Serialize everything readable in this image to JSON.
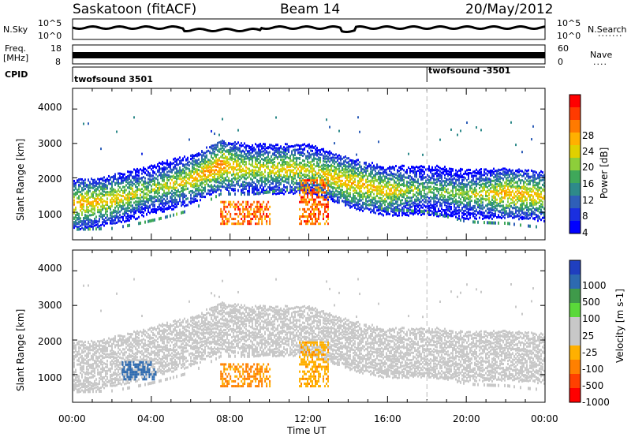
{
  "header": {
    "station": "Saskatoon (fitACF)",
    "beam": "Beam 14",
    "date": "20/May/2012"
  },
  "top_panels": {
    "nsky": {
      "label": "N.Sky",
      "ticks": [
        "10^5",
        "10^0"
      ]
    },
    "nsearch": {
      "label": "N.Search",
      "ticks": [
        "10^5",
        "10^0"
      ]
    },
    "freq": {
      "label_line1": "Freq.",
      "label_line2": "[MHz]",
      "ticks": [
        "18",
        "8"
      ]
    },
    "nave": {
      "label": "Nave",
      "ticks": [
        "60",
        "0"
      ]
    },
    "cpid": {
      "label": "CPID",
      "modes": [
        {
          "name": "twofsound 3501",
          "start_hour": 0
        },
        {
          "name": "twofsound -3501",
          "start_hour": 18
        }
      ]
    }
  },
  "panels": [
    {
      "name": "power",
      "ylabel": "Slant Range [km]",
      "yticks": [
        "4000",
        "3000",
        "2000",
        "1000"
      ],
      "cbar_label": "Power [dB]",
      "cbar_ticks": [
        "28",
        "24",
        "20",
        "16",
        "12",
        "8",
        "4"
      ],
      "cbar_colors": [
        "#ff0000",
        "#ff3a00",
        "#ff7a00",
        "#ffb000",
        "#e0d000",
        "#8dce3a",
        "#3fa85a",
        "#2e8a8a",
        "#2f5fb8",
        "#1a2fe0",
        "#0000ff"
      ]
    },
    {
      "name": "velocity",
      "ylabel": "Slant Range [km]",
      "yticks": [
        "4000",
        "3000",
        "2000",
        "1000"
      ],
      "cbar_label": "Velocity [m s-1]",
      "cbar_ticks": [
        "1000",
        "500",
        "100",
        "25",
        "-25",
        "-100",
        "-500",
        "-1000"
      ],
      "cbar_colors": [
        "#1f3fbf",
        "#2d6ab0",
        "#3f9a4a",
        "#5ad83a",
        "#c8c8c8",
        "#c8c8c8",
        "#ffb000",
        "#ff8000",
        "#ff4000",
        "#ff0000"
      ]
    }
  ],
  "xaxis": {
    "label": "Time UT",
    "ticks": [
      "00:00",
      "04:00",
      "08:00",
      "12:00",
      "16:00",
      "20:00",
      "00:00"
    ]
  },
  "chart_data": {
    "type": "heatmap",
    "title": "Saskatoon (fitACF)  Beam 14  20/May/2012",
    "xlabel": "Time UT",
    "ylabel": "Slant Range [km]",
    "xlim_hours": [
      0,
      24
    ],
    "ylim_km": [
      200,
      4600
    ],
    "power_colorbar_ticks_dB": [
      4,
      8,
      12,
      16,
      20,
      24,
      28
    ],
    "velocity_colorbar_ticks_ms": [
      -1000,
      -500,
      -100,
      -25,
      25,
      100,
      500,
      1000
    ],
    "cpid_change_hour": 18,
    "main_scatter_band": {
      "time_hours": [
        0,
        2,
        4,
        6,
        7.5,
        9,
        11,
        12,
        14,
        16,
        18,
        20,
        22,
        24
      ],
      "center_range_km": [
        1250,
        1400,
        1700,
        2000,
        2400,
        2300,
        2300,
        2300,
        1900,
        1650,
        1700,
        1550,
        1600,
        1500
      ],
      "power_dB": [
        22,
        20,
        16,
        20,
        24,
        18,
        20,
        18,
        22,
        20,
        14,
        16,
        22,
        20
      ]
    },
    "velocity_enhancements": [
      {
        "time_hours": [
          2.5,
          4.2
        ],
        "range_km": [
          900,
          1400
        ],
        "velocity_ms": 500
      },
      {
        "time_hours": [
          7.5,
          10
        ],
        "range_km": [
          700,
          1400
        ],
        "velocity_ms": -300
      },
      {
        "time_hours": [
          11.5,
          13
        ],
        "range_km": [
          700,
          2000
        ],
        "velocity_ms": -200
      }
    ]
  }
}
